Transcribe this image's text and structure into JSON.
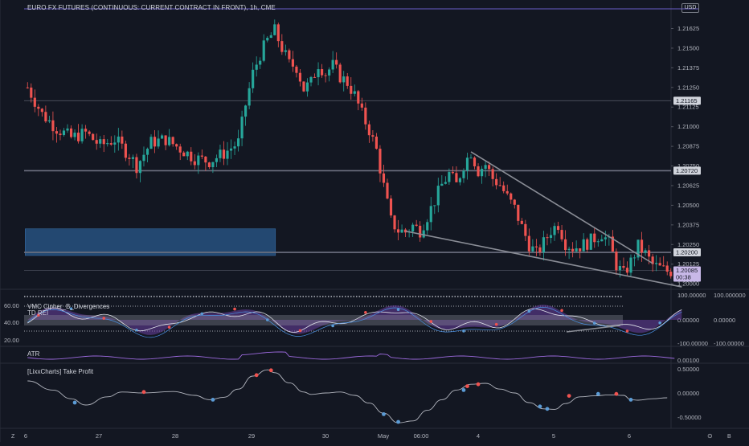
{
  "title": "EURO FX FUTURES (CONTINUOUS: CURRENT CONTRACT IN FRONT), 1h, CME",
  "currency": "USD",
  "countdown": "00:38",
  "colors": {
    "background": "#131722",
    "up": "#26a69a",
    "down": "#ef5350",
    "price_label": "#c8b8e8",
    "range_box": "#2962ff",
    "wedge": "#787b86"
  },
  "panels": [
    {
      "name": "VMC Cipher_B_Divergences",
      "label": "VMC Cipher_B_Divergences"
    },
    {
      "name": "TD REI",
      "label": "TD REI"
    },
    {
      "name": "ATR",
      "label": "ATR"
    },
    {
      "name": "[LixxCharts] Take Profit",
      "label": "[LixxCharts] Take Profit"
    }
  ],
  "chart_data": [
    {
      "type": "candlestick",
      "title": "EURO FX FUTURES (CONTINUOUS: CURRENT CONTRACT IN FRONT), 1h, CME",
      "x_ticks": [
        "6",
        "27",
        "28",
        "29",
        "30",
        "May",
        "06:00",
        "4",
        "5",
        "6"
      ],
      "y_ticks": [
        "1.21625",
        "1.21500",
        "1.21375",
        "1.21250",
        "1.21125",
        "1.21000",
        "1.20875",
        "1.20750",
        "1.20625",
        "1.20500",
        "1.20375",
        "1.20250",
        "1.20125",
        "1.20000"
      ],
      "ylim": [
        1.19965,
        1.21735
      ],
      "price_labels": [
        "1.21165",
        "1.20720",
        "1.20200",
        "1.20085"
      ],
      "horizontal_levels": [
        1.21165,
        1.2072,
        1.202
      ],
      "last_price": 1.20085,
      "close_path": [
        [
          0,
          1.2125
        ],
        [
          4,
          1.2108
        ],
        [
          8,
          1.2099
        ],
        [
          12,
          1.2093
        ],
        [
          16,
          1.2096
        ],
        [
          20,
          1.2088
        ],
        [
          24,
          1.2092
        ],
        [
          28,
          1.2082
        ],
        [
          30,
          1.2075
        ],
        [
          34,
          1.209
        ],
        [
          38,
          1.2092
        ],
        [
          42,
          1.2086
        ],
        [
          46,
          1.208
        ],
        [
          50,
          1.2078
        ],
        [
          54,
          1.2083
        ],
        [
          58,
          1.209
        ],
        [
          60,
          1.2114
        ],
        [
          62,
          1.2134
        ],
        [
          64,
          1.2146
        ],
        [
          66,
          1.2155
        ],
        [
          68,
          1.2161
        ],
        [
          70,
          1.215
        ],
        [
          72,
          1.214
        ],
        [
          74,
          1.2138
        ],
        [
          76,
          1.2124
        ],
        [
          78,
          1.2128
        ],
        [
          80,
          1.214
        ],
        [
          82,
          1.2134
        ],
        [
          84,
          1.2139
        ],
        [
          86,
          1.2132
        ],
        [
          88,
          1.2128
        ],
        [
          90,
          1.212
        ],
        [
          92,
          1.2108
        ],
        [
          94,
          1.2098
        ],
        [
          96,
          1.2085
        ],
        [
          98,
          1.2062
        ],
        [
          100,
          1.204
        ],
        [
          102,
          1.2034
        ],
        [
          104,
          1.2033
        ],
        [
          106,
          1.2037
        ],
        [
          108,
          1.2034
        ],
        [
          110,
          1.2043
        ],
        [
          112,
          1.2053
        ],
        [
          114,
          1.2063
        ],
        [
          116,
          1.207
        ],
        [
          118,
          1.2063
        ],
        [
          120,
          1.2076
        ],
        [
          122,
          1.2084
        ],
        [
          124,
          1.2072
        ],
        [
          126,
          1.2076
        ],
        [
          128,
          1.2067
        ],
        [
          130,
          1.2063
        ],
        [
          132,
          1.2055
        ],
        [
          134,
          1.2048
        ],
        [
          136,
          1.2036
        ],
        [
          138,
          1.2025
        ],
        [
          140,
          1.2019
        ],
        [
          142,
          1.2026
        ],
        [
          144,
          1.2034
        ],
        [
          146,
          1.2038
        ],
        [
          148,
          1.2026
        ],
        [
          150,
          1.2023
        ],
        [
          152,
          1.2024
        ],
        [
          154,
          1.2026
        ],
        [
          156,
          1.2029
        ],
        [
          158,
          1.2032
        ],
        [
          160,
          1.2026
        ],
        [
          162,
          1.2012
        ],
        [
          164,
          1.2006
        ],
        [
          166,
          1.2014
        ],
        [
          168,
          1.2024
        ],
        [
          170,
          1.2019
        ],
        [
          172,
          1.2012
        ],
        [
          174,
          1.201
        ],
        [
          176,
          1.2008
        ]
      ],
      "bar_count": 178,
      "annotations": [
        {
          "name": "range-box",
          "kind": "rectangle",
          "x": [
            0,
            68
          ],
          "y": [
            1.2018,
            1.2035
          ]
        },
        {
          "name": "wedge-upper",
          "kind": "trendline",
          "x": [
            122,
            172
          ],
          "y": [
            1.2084,
            1.2013
          ]
        },
        {
          "name": "wedge-lower",
          "kind": "trendline",
          "x": [
            104,
            180
          ],
          "y": [
            1.20335,
            1.1998
          ]
        }
      ]
    },
    {
      "type": "line",
      "title": "VMC Cipher_B_Divergences",
      "y_ticks": [
        "60.00",
        "40.00",
        "20.00"
      ],
      "right_ticks": [
        "100.000000",
        "0.00000",
        "-100.00000"
      ],
      "right_ticks_alt": [
        "100.00000",
        "0.00000",
        "-100.00000"
      ]
    },
    {
      "type": "line",
      "title": "ATR",
      "right_ticks": [
        "0.00100"
      ]
    },
    {
      "type": "line",
      "title": "[LixxCharts] Take Profit",
      "right_ticks": [
        "0.50000",
        "0.00000",
        "-0.50000"
      ],
      "series": [
        {
          "values": [
            [
              0,
              0.25
            ],
            [
              7,
              0.06
            ],
            [
              12,
              -0.12
            ],
            [
              16,
              -0.25
            ],
            [
              22,
              -0.08
            ],
            [
              26,
              0.02
            ],
            [
              32,
              0.0
            ],
            [
              40,
              0.03
            ],
            [
              46,
              -0.05
            ],
            [
              50,
              -0.14
            ],
            [
              54,
              -0.09
            ],
            [
              58,
              0.08
            ],
            [
              62,
              0.35
            ],
            [
              66,
              0.48
            ],
            [
              68,
              0.42
            ],
            [
              72,
              0.21
            ],
            [
              76,
              0.02
            ],
            [
              78,
              -0.03
            ],
            [
              82,
              0.0
            ],
            [
              86,
              0.02
            ],
            [
              90,
              -0.05
            ],
            [
              94,
              -0.21
            ],
            [
              98,
              -0.42
            ],
            [
              102,
              -0.62
            ],
            [
              106,
              -0.58
            ],
            [
              110,
              -0.36
            ],
            [
              114,
              -0.14
            ],
            [
              118,
              0.06
            ],
            [
              122,
              0.18
            ],
            [
              126,
              0.2
            ],
            [
              130,
              0.08
            ],
            [
              134,
              0.0
            ],
            [
              138,
              -0.2
            ],
            [
              142,
              -0.33
            ],
            [
              145,
              -0.34
            ],
            [
              148,
              -0.22
            ],
            [
              152,
              -0.08
            ],
            [
              156,
              -0.06
            ],
            [
              160,
              -0.04
            ],
            [
              164,
              -0.05
            ],
            [
              166,
              -0.14
            ],
            [
              168,
              -0.15
            ],
            [
              172,
              -0.12
            ],
            [
              176,
              -0.1
            ]
          ],
          "buy_markers": [
            [
              13,
              -0.2
            ],
            [
              51,
              -0.14
            ],
            [
              98,
              -0.44
            ],
            [
              102,
              -0.6
            ],
            [
              120,
              0.06
            ],
            [
              141,
              -0.28
            ],
            [
              143,
              -0.33
            ],
            [
              157,
              -0.02
            ],
            [
              166,
              -0.14
            ]
          ],
          "sell_markers": [
            [
              32,
              0.02
            ],
            [
              63,
              0.37
            ],
            [
              67,
              0.47
            ],
            [
              121,
              0.14
            ],
            [
              124,
              0.18
            ],
            [
              149,
              -0.06
            ],
            [
              162,
              -0.02
            ]
          ]
        }
      ]
    }
  ]
}
